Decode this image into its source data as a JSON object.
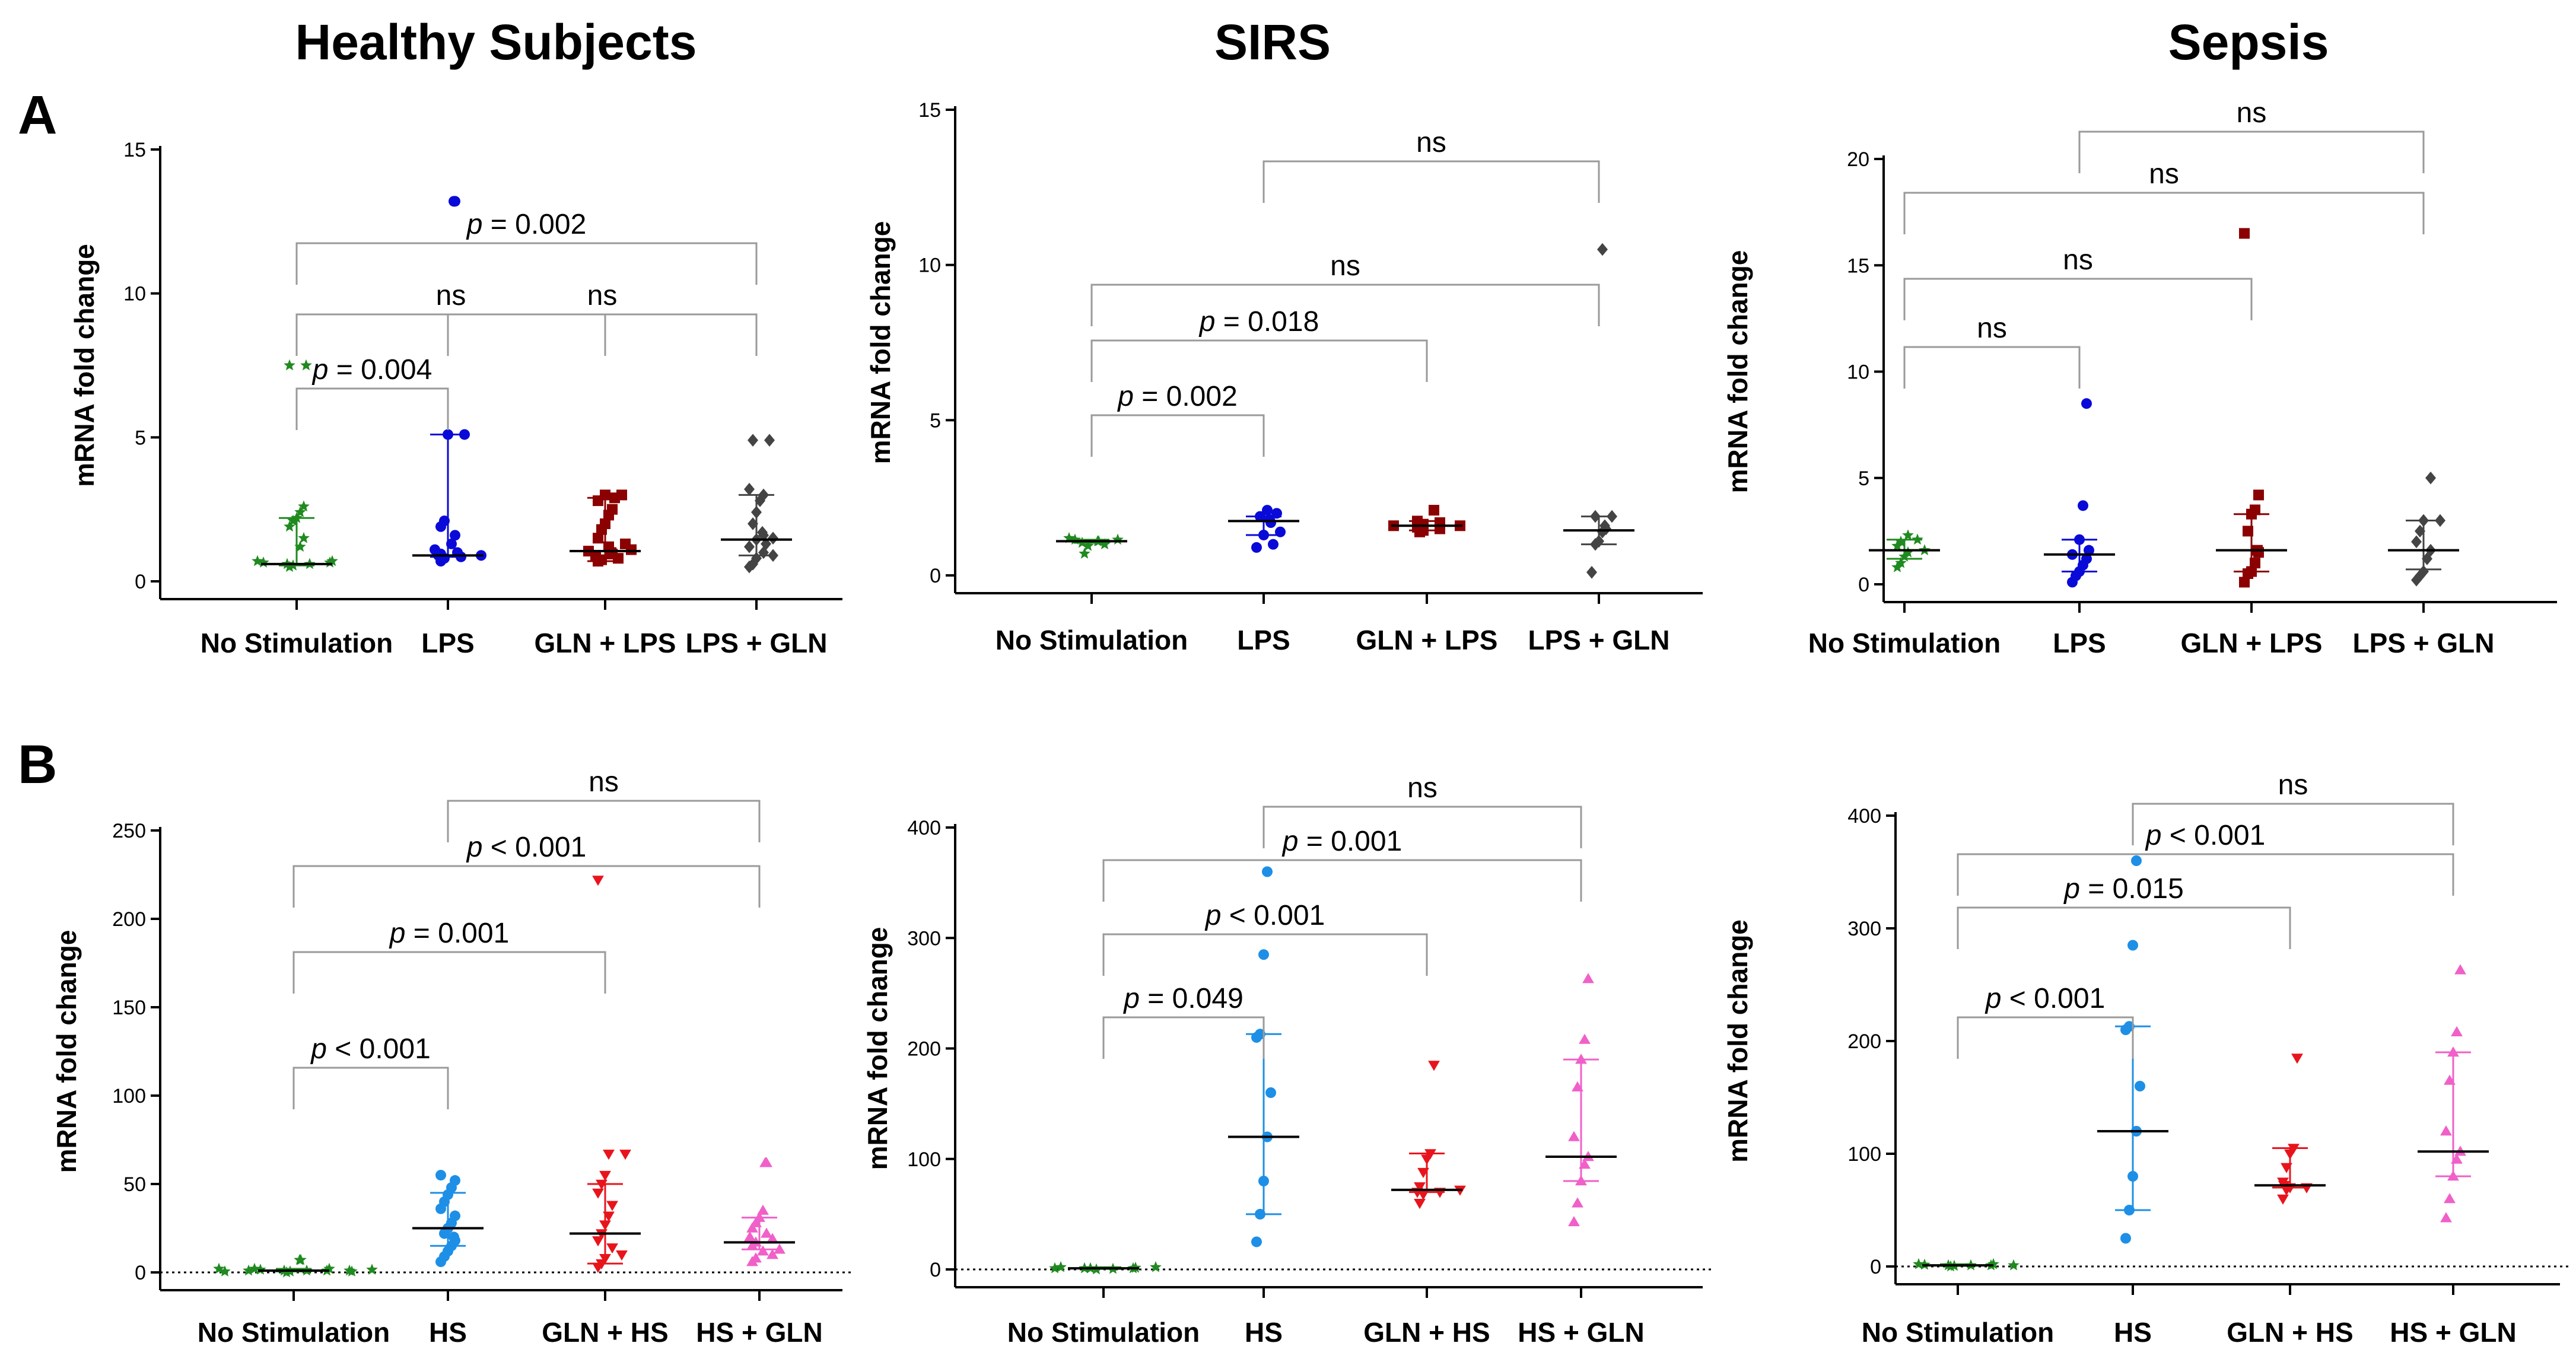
{
  "titles": {
    "col1": "Healthy Subjects",
    "col2": "SIRS",
    "col3": "Sepsis"
  },
  "panel_labels": {
    "a": "A",
    "b": "B"
  },
  "chart_data": [
    {
      "type": "scatter",
      "row": "A",
      "group": "Healthy Subjects",
      "ylabel": "mRNA fold change",
      "ylim": [
        0,
        15
      ],
      "yticks": [
        0,
        5,
        10,
        15
      ],
      "categories": [
        "No Stimulation",
        "LPS",
        "GLN + LPS",
        "LPS + GLN"
      ],
      "colors": [
        "#1f8a1f",
        "#0a0ad8",
        "#8b0000",
        "#444444"
      ],
      "markers": [
        "star",
        "circle",
        "square",
        "diamond"
      ],
      "series": [
        {
          "name": "No Stimulation",
          "median": 0.6,
          "q1": 0.55,
          "q3": 2.2,
          "values": [
            0.5,
            0.55,
            0.6,
            0.6,
            0.65,
            0.65,
            0.7,
            0.7,
            1.2,
            1.5,
            1.9,
            2.1,
            2.2,
            2.4,
            2.6,
            7.5,
            7.5
          ]
        },
        {
          "name": "LPS",
          "median": 0.9,
          "q1": 0.85,
          "q3": 5.1,
          "values": [
            0.7,
            0.8,
            0.85,
            0.9,
            0.9,
            0.95,
            1.0,
            1.1,
            1.3,
            1.6,
            1.9,
            2.1,
            5.1,
            5.1,
            13.2,
            13.2
          ]
        },
        {
          "name": "GLN + LPS",
          "median": 1.05,
          "q1": 0.7,
          "q3": 2.9,
          "values": [
            0.7,
            0.75,
            0.8,
            0.9,
            0.95,
            1.0,
            1.05,
            1.1,
            1.2,
            1.3,
            1.5,
            1.8,
            2.0,
            2.3,
            2.5,
            2.8,
            2.9,
            3.0,
            3.0
          ]
        },
        {
          "name": "LPS + GLN",
          "median": 1.45,
          "q1": 0.9,
          "q3": 3.0,
          "values": [
            0.5,
            0.6,
            0.8,
            0.9,
            1.0,
            1.2,
            1.3,
            1.45,
            1.5,
            1.6,
            1.7,
            2.0,
            2.4,
            2.8,
            3.0,
            3.2,
            4.9,
            4.9
          ]
        }
      ],
      "annotations": [
        {
          "from": "No Stimulation",
          "to": "LPS",
          "label_prefix": "p",
          "label_rest": " = 0.004"
        },
        {
          "from": "No Stimulation",
          "to": "GLN + LPS",
          "label_prefix": "",
          "label_rest": "ns"
        },
        {
          "from": "No Stimulation",
          "to": "LPS + GLN",
          "label_prefix": "p",
          "label_rest": " = 0.002"
        },
        {
          "from": "LPS",
          "to": "LPS + GLN",
          "label_prefix": "",
          "label_rest": "ns"
        }
      ]
    },
    {
      "type": "scatter",
      "row": "A",
      "group": "SIRS",
      "ylabel": "mRNA fold change",
      "ylim": [
        0,
        15
      ],
      "yticks": [
        0,
        5,
        10,
        15
      ],
      "categories": [
        "No Stimulation",
        "LPS",
        "GLN + LPS",
        "LPS + GLN"
      ],
      "colors": [
        "#1f8a1f",
        "#0a0ad8",
        "#8b0000",
        "#444444"
      ],
      "markers": [
        "star",
        "circle",
        "square",
        "diamond"
      ],
      "series": [
        {
          "name": "No Stimulation",
          "median": 1.1,
          "q1": 1.05,
          "q3": 1.15,
          "values": [
            0.7,
            0.95,
            1.0,
            1.05,
            1.1,
            1.1,
            1.15,
            1.15,
            1.2
          ]
        },
        {
          "name": "LPS",
          "median": 1.75,
          "q1": 1.3,
          "q3": 1.9,
          "values": [
            0.9,
            1.0,
            1.3,
            1.4,
            1.7,
            1.8,
            1.9,
            2.0,
            2.1
          ]
        },
        {
          "name": "GLN + LPS",
          "median": 1.6,
          "q1": 1.45,
          "q3": 1.75,
          "values": [
            1.4,
            1.45,
            1.5,
            1.55,
            1.6,
            1.6,
            1.65,
            1.7,
            1.75,
            2.1
          ]
        },
        {
          "name": "LPS + GLN",
          "median": 1.45,
          "q1": 1.0,
          "q3": 1.9,
          "values": [
            0.1,
            1.0,
            1.1,
            1.4,
            1.5,
            1.6,
            1.9,
            1.9,
            10.5
          ]
        }
      ],
      "annotations": [
        {
          "from": "No Stimulation",
          "to": "LPS",
          "label_prefix": "p",
          "label_rest": " = 0.002"
        },
        {
          "from": "No Stimulation",
          "to": "GLN + LPS",
          "label_prefix": "p",
          "label_rest": " = 0.018"
        },
        {
          "from": "No Stimulation",
          "to": "LPS + GLN",
          "label_prefix": "",
          "label_rest": "ns"
        },
        {
          "from": "LPS",
          "to": "LPS + GLN",
          "label_prefix": "",
          "label_rest": "ns"
        }
      ]
    },
    {
      "type": "scatter",
      "row": "A",
      "group": "Sepsis",
      "ylabel": "mRNA fold change",
      "ylim": [
        0,
        20
      ],
      "yticks": [
        0,
        5,
        10,
        15,
        20
      ],
      "categories": [
        "No Stimulation",
        "LPS",
        "GLN + LPS",
        "LPS + GLN"
      ],
      "colors": [
        "#1f8a1f",
        "#0a0ad8",
        "#8b0000",
        "#444444"
      ],
      "markers": [
        "star",
        "circle",
        "square",
        "diamond"
      ],
      "series": [
        {
          "name": "No Stimulation",
          "median": 1.6,
          "q1": 1.2,
          "q3": 2.1,
          "values": [
            0.8,
            1.0,
            1.3,
            1.5,
            1.6,
            1.8,
            2.0,
            2.1,
            2.3
          ]
        },
        {
          "name": "LPS",
          "median": 1.4,
          "q1": 0.6,
          "q3": 2.1,
          "values": [
            0.1,
            0.4,
            0.6,
            0.9,
            1.2,
            1.4,
            1.6,
            2.1,
            3.7,
            8.5
          ]
        },
        {
          "name": "GLN + LPS",
          "median": 1.6,
          "q1": 0.6,
          "q3": 3.3,
          "values": [
            0.1,
            0.5,
            0.6,
            1.0,
            1.5,
            1.6,
            2.5,
            3.3,
            3.5,
            4.2,
            16.5
          ]
        },
        {
          "name": "LPS + GLN",
          "median": 1.6,
          "q1": 0.7,
          "q3": 3.0,
          "values": [
            0.2,
            0.4,
            0.6,
            1.2,
            1.6,
            2.0,
            2.5,
            3.0,
            3.0,
            5.0
          ]
        }
      ],
      "annotations": [
        {
          "from": "No Stimulation",
          "to": "LPS",
          "label_prefix": "",
          "label_rest": "ns"
        },
        {
          "from": "No Stimulation",
          "to": "LPS + GLN",
          "label_prefix": "",
          "label_rest": "ns"
        },
        {
          "from": "No Stimulation",
          "to": "GLN + LPS",
          "label_prefix": "",
          "label_rest": "ns"
        },
        {
          "from": "LPS",
          "to": "LPS + GLN",
          "label_prefix": "",
          "label_rest": "ns"
        }
      ]
    },
    {
      "type": "scatter",
      "row": "B",
      "group": "Healthy Subjects",
      "ylabel": "mRNA fold change",
      "ylim": [
        0,
        250
      ],
      "yticks": [
        0,
        50,
        100,
        150,
        200,
        250
      ],
      "categories": [
        "No Stimulation",
        "HS",
        "GLN + HS",
        "HS + GLN"
      ],
      "colors": [
        "#1f8a1f",
        "#1e8fe6",
        "#e8141c",
        "#f060c8"
      ],
      "markers": [
        "star",
        "circle",
        "tri-down",
        "tri-up"
      ],
      "baseline": true,
      "series": [
        {
          "name": "No Stimulation",
          "median": 1,
          "q1": 0.5,
          "q3": 2,
          "values": [
            0,
            0.5,
            1,
            1,
            1,
            1.5,
            2,
            2,
            1,
            1,
            0.5,
            0.5,
            1.5,
            2,
            7,
            7
          ]
        },
        {
          "name": "HS",
          "median": 25,
          "q1": 15,
          "q3": 45,
          "values": [
            6,
            9,
            12,
            15,
            18,
            20,
            22,
            25,
            28,
            32,
            36,
            40,
            44,
            48,
            52,
            55
          ]
        },
        {
          "name": "GLN + HS",
          "median": 22,
          "q1": 5,
          "q3": 50,
          "values": [
            3,
            5,
            8,
            10,
            14,
            18,
            22,
            27,
            32,
            38,
            45,
            50,
            55,
            67,
            67,
            222
          ]
        },
        {
          "name": "HS + GLN",
          "median": 17,
          "q1": 13,
          "q3": 31,
          "values": [
            6,
            8,
            10,
            12,
            13,
            15,
            17,
            19,
            20,
            22,
            25,
            28,
            31,
            35,
            62,
            62
          ]
        }
      ],
      "annotations": [
        {
          "from": "No Stimulation",
          "to": "HS",
          "label_prefix": "p",
          "label_rest": " < 0.001"
        },
        {
          "from": "No Stimulation",
          "to": "HS + GLN",
          "label_prefix": "p",
          "label_rest": " < 0.001"
        },
        {
          "from": "No Stimulation",
          "to": "GLN + HS",
          "label_prefix": "p",
          "label_rest": " = 0.001"
        },
        {
          "from": "HS",
          "to": "HS + GLN",
          "label_prefix": "",
          "label_rest": "ns"
        }
      ]
    },
    {
      "type": "scatter",
      "row": "B",
      "group": "SIRS",
      "ylabel": "mRNA fold change",
      "ylim": [
        0,
        400
      ],
      "yticks": [
        0,
        100,
        200,
        300,
        400
      ],
      "categories": [
        "No Stimulation",
        "HS",
        "GLN + HS",
        "HS + GLN"
      ],
      "colors": [
        "#1f8a1f",
        "#1e8fe6",
        "#e8141c",
        "#f060c8"
      ],
      "markers": [
        "star",
        "circle",
        "tri-down",
        "tri-up"
      ],
      "baseline": true,
      "series": [
        {
          "name": "No Stimulation",
          "median": 1,
          "q1": 0.5,
          "q3": 2,
          "values": [
            0,
            0.5,
            1,
            1,
            1,
            1.5,
            2,
            2,
            1
          ]
        },
        {
          "name": "HS",
          "median": 120,
          "q1": 50,
          "q3": 213,
          "values": [
            25,
            50,
            80,
            120,
            160,
            210,
            213,
            285,
            360
          ]
        },
        {
          "name": "GLN + HS",
          "median": 72,
          "q1": 70,
          "q3": 105,
          "values": [
            60,
            68,
            70,
            70,
            72,
            75,
            88,
            100,
            105,
            185
          ]
        },
        {
          "name": "HS + GLN",
          "median": 102,
          "q1": 80,
          "q3": 190,
          "values": [
            43,
            60,
            80,
            95,
            102,
            120,
            165,
            190,
            208,
            263
          ]
        }
      ],
      "annotations": [
        {
          "from": "No Stimulation",
          "to": "HS",
          "label_prefix": "p",
          "label_rest": " = 0.049"
        },
        {
          "from": "No Stimulation",
          "to": "HS + GLN",
          "label_prefix": "p",
          "label_rest": " = 0.001"
        },
        {
          "from": "No Stimulation",
          "to": "GLN + HS",
          "label_prefix": "p",
          "label_rest": " < 0.001"
        },
        {
          "from": "HS",
          "to": "HS + GLN",
          "label_prefix": "",
          "label_rest": "ns"
        }
      ]
    },
    {
      "type": "scatter",
      "row": "B",
      "group": "Sepsis",
      "ylabel": "mRNA fold change",
      "ylim": [
        0,
        400
      ],
      "yticks": [
        0,
        100,
        200,
        300,
        400
      ],
      "categories": [
        "No Stimulation",
        "HS",
        "GLN + HS",
        "HS + GLN"
      ],
      "colors": [
        "#1f8a1f",
        "#1e8fe6",
        "#e8141c",
        "#f060c8"
      ],
      "markers": [
        "star",
        "circle",
        "tri-down",
        "tri-up"
      ],
      "baseline": true,
      "series": [
        {
          "name": "No Stimulation",
          "median": 1,
          "q1": 0.5,
          "q3": 2,
          "values": [
            0,
            0.5,
            1,
            1,
            1,
            1.5,
            2,
            2,
            1
          ]
        },
        {
          "name": "HS",
          "median": 120,
          "q1": 50,
          "q3": 213,
          "values": [
            25,
            50,
            80,
            120,
            160,
            210,
            213,
            285,
            360
          ]
        },
        {
          "name": "GLN + HS",
          "median": 72,
          "q1": 70,
          "q3": 105,
          "values": [
            60,
            68,
            70,
            70,
            72,
            75,
            88,
            100,
            105,
            185
          ]
        },
        {
          "name": "HS + GLN",
          "median": 102,
          "q1": 80,
          "q3": 190,
          "values": [
            43,
            60,
            80,
            95,
            102,
            120,
            165,
            190,
            208,
            263
          ]
        }
      ],
      "annotations": [
        {
          "from": "No Stimulation",
          "to": "HS",
          "label_prefix": "p",
          "label_rest": " < 0.001"
        },
        {
          "from": "No Stimulation",
          "to": "HS + GLN",
          "label_prefix": "p",
          "label_rest": " < 0.001"
        },
        {
          "from": "No Stimulation",
          "to": "GLN + HS",
          "label_prefix": "p",
          "label_rest": " = 0.015"
        },
        {
          "from": "HS",
          "to": "HS + GLN",
          "label_prefix": "",
          "label_rest": "ns"
        }
      ]
    }
  ]
}
